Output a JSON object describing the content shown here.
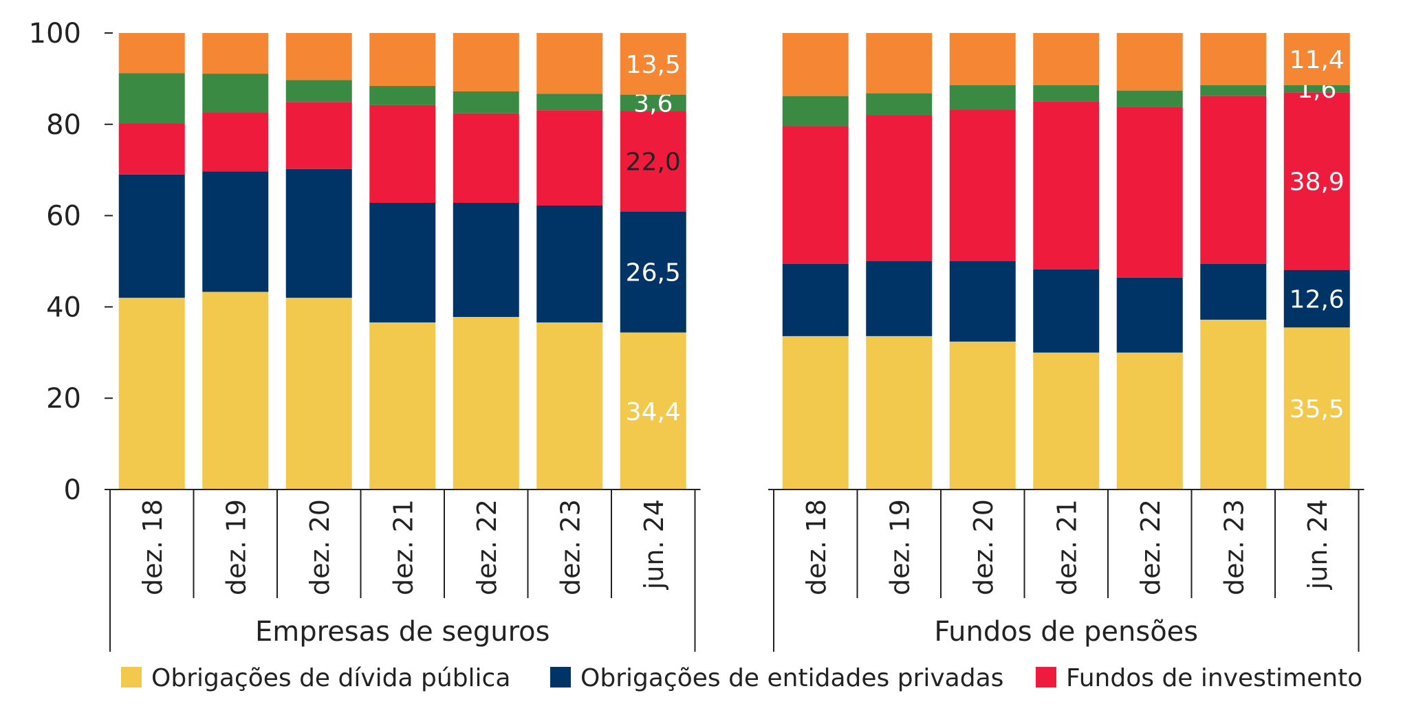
{
  "chart_data": {
    "type": "bar",
    "stacked": true,
    "ylim": [
      0,
      100
    ],
    "yticks": [
      0,
      20,
      40,
      60,
      80,
      100
    ],
    "groups": [
      {
        "name": "Empresas de seguros",
        "categories": [
          "dez. 18",
          "dez. 19",
          "dez. 20",
          "dez. 21",
          "dez. 22",
          "dez. 23",
          "jun. 24"
        ],
        "series": [
          {
            "name": "Obrigações de dívida pública",
            "color": "#F2C94C",
            "values": [
              42.0,
              43.3,
              42.0,
              36.6,
              37.8,
              36.6,
              34.4
            ],
            "labels": [
              null,
              null,
              null,
              null,
              null,
              null,
              "34,4"
            ],
            "label_color": "#ffffff"
          },
          {
            "name": "Obrigações de entidades privadas",
            "color": "#003366",
            "values": [
              27.0,
              26.4,
              28.2,
              26.2,
              25.0,
              25.6,
              26.5
            ],
            "labels": [
              null,
              null,
              null,
              null,
              null,
              null,
              "26,5"
            ],
            "label_color": "#ffffff"
          },
          {
            "name": "Fundos de investimento",
            "color": "#EE1B3D",
            "values": [
              11.2,
              12.9,
              14.7,
              21.4,
              19.6,
              20.9,
              22.0
            ],
            "labels": [
              null,
              null,
              null,
              null,
              null,
              null,
              "22,0"
            ],
            "label_color": "#222222"
          },
          {
            "name": "",
            "color": "#3B8A43",
            "values": [
              11.0,
              8.5,
              4.8,
              4.2,
              4.8,
              3.6,
              3.6
            ],
            "labels": [
              null,
              null,
              null,
              null,
              null,
              null,
              "3,6"
            ],
            "label_color": "#ffffff"
          },
          {
            "name": "",
            "color": "#F58634",
            "values": [
              8.8,
              8.9,
              10.3,
              11.6,
              12.8,
              13.3,
              13.5
            ],
            "labels": [
              null,
              null,
              null,
              null,
              null,
              null,
              "13,5"
            ],
            "label_color": "#ffffff"
          }
        ]
      },
      {
        "name": "Fundos de pensões",
        "categories": [
          "dez. 18",
          "dez. 19",
          "dez. 20",
          "dez. 21",
          "dez. 22",
          "dez. 23",
          "jun. 24"
        ],
        "series": [
          {
            "name": "Obrigações de dívida pública",
            "color": "#F2C94C",
            "values": [
              33.6,
              33.6,
              32.4,
              30.0,
              30.0,
              37.2,
              35.5
            ],
            "labels": [
              null,
              null,
              null,
              null,
              null,
              null,
              "35,5"
            ],
            "label_color": "#ffffff"
          },
          {
            "name": "Obrigações de entidades privadas",
            "color": "#003366",
            "values": [
              15.8,
              16.4,
              17.6,
              18.2,
              16.4,
              12.2,
              12.6
            ],
            "labels": [
              null,
              null,
              null,
              null,
              null,
              null,
              "12,6"
            ],
            "label_color": "#ffffff"
          },
          {
            "name": "Fundos de investimento",
            "color": "#EE1B3D",
            "values": [
              30.2,
              32.0,
              33.2,
              36.8,
              37.4,
              36.8,
              38.9
            ],
            "labels": [
              null,
              null,
              null,
              null,
              null,
              null,
              "38,9"
            ],
            "label_color": "#ffffff"
          },
          {
            "name": "",
            "color": "#3B8A43",
            "values": [
              6.6,
              4.8,
              5.4,
              3.6,
              3.6,
              2.4,
              1.6
            ],
            "labels": [
              null,
              null,
              null,
              null,
              null,
              null,
              "1,6"
            ],
            "label_color": "#ffffff"
          },
          {
            "name": "",
            "color": "#F58634",
            "values": [
              13.8,
              13.2,
              11.4,
              11.4,
              12.6,
              11.4,
              11.4
            ],
            "labels": [
              null,
              null,
              null,
              null,
              null,
              null,
              "11,4"
            ],
            "label_color": "#ffffff"
          }
        ]
      }
    ],
    "legend": [
      {
        "label": "Obrigações de dívida pública",
        "color": "#F2C94C"
      },
      {
        "label": "Obrigações de entidades privadas",
        "color": "#003366"
      },
      {
        "label": "Fundos de investimento",
        "color": "#EE1B3D"
      }
    ],
    "legend_position": "bottom",
    "grid": false
  }
}
